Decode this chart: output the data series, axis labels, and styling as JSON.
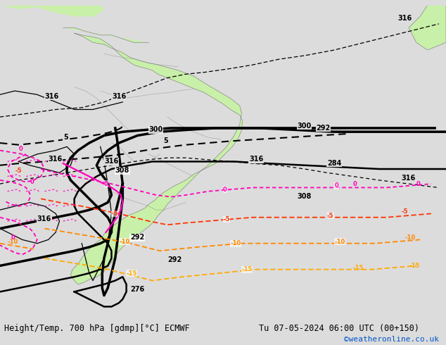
{
  "title_left": "Height/Temp. 700 hPa [gdmp][°C] ECMWF",
  "title_right": "Tu 07-05-2024 06:00 UTC (00+150)",
  "credit": "©weatheronline.co.uk",
  "fig_width": 6.34,
  "fig_height": 4.9,
  "dpi": 100,
  "bg_color": "#dcdcdc",
  "land_color": "#c8f0a8",
  "ocean_color": "#dcdcdc",
  "coast_color": "#888888",
  "title_fontsize": 8.5,
  "credit_color": "#0055cc",
  "credit_fontsize": 8,
  "geo_color": "#000000",
  "geo_lw": 1.8,
  "geo_lw_thick": 2.5,
  "temp0_color": "#ff00bb",
  "temp_neg5_color": "#ff3300",
  "temp_neg10_color": "#ff8800",
  "temp_neg15_color": "#ffaa00",
  "temp_lw": 1.3,
  "annotation_fontsize": 7
}
